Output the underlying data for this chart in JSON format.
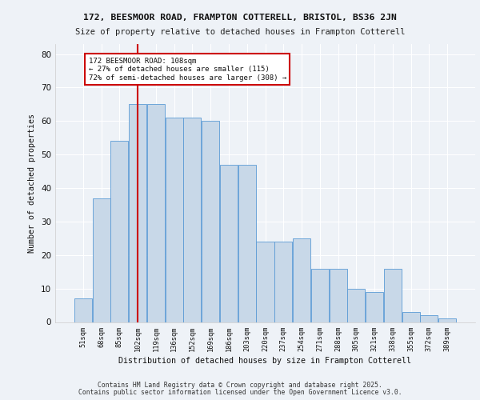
{
  "title1": "172, BEESMOOR ROAD, FRAMPTON COTTERELL, BRISTOL, BS36 2JN",
  "title2": "Size of property relative to detached houses in Frampton Cotterell",
  "xlabel": "Distribution of detached houses by size in Frampton Cotterell",
  "ylabel": "Number of detached properties",
  "categories": [
    "51sqm",
    "68sqm",
    "85sqm",
    "102sqm",
    "119sqm",
    "136sqm",
    "152sqm",
    "169sqm",
    "186sqm",
    "203sqm",
    "220sqm",
    "237sqm",
    "254sqm",
    "271sqm",
    "288sqm",
    "305sqm",
    "321sqm",
    "338sqm",
    "355sqm",
    "372sqm",
    "389sqm"
  ],
  "values": [
    7,
    37,
    54,
    65,
    65,
    61,
    61,
    60,
    47,
    47,
    24,
    24,
    25,
    16,
    16,
    10,
    9,
    16,
    3,
    2,
    1
  ],
  "bar_color": "#c8d8e8",
  "bar_edgecolor": "#5b9bd5",
  "background_color": "#eef2f7",
  "grid_color": "#ffffff",
  "red_line_x": 3.0,
  "annotation_text": "172 BEESMOOR ROAD: 108sqm\n← 27% of detached houses are smaller (115)\n72% of semi-detached houses are larger (308) →",
  "annotation_box_color": "#ffffff",
  "annotation_box_edgecolor": "#cc0000",
  "ylim": [
    0,
    83
  ],
  "yticks": [
    0,
    10,
    20,
    30,
    40,
    50,
    60,
    70,
    80
  ],
  "footer1": "Contains HM Land Registry data © Crown copyright and database right 2025.",
  "footer2": "Contains public sector information licensed under the Open Government Licence v3.0."
}
